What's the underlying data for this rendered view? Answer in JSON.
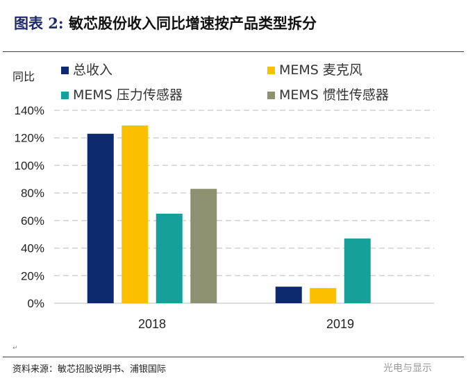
{
  "header": {
    "label": "图表 2:",
    "title": "敏芯股份收入同比增速按产品类型拆分"
  },
  "footer": {
    "source": "资料来源：敏芯招股说明书、浦银国际",
    "watermark": "光电与显示",
    "para_mark": "↵"
  },
  "chart_data": {
    "type": "bar",
    "ylabel": "同比",
    "categories": [
      "2018",
      "2019"
    ],
    "series": [
      {
        "name": "总收入",
        "color": "#0d2a6e",
        "values": [
          123,
          12
        ]
      },
      {
        "name": "MEMS 麦克风",
        "color": "#fcbf00",
        "values": [
          129,
          11
        ]
      },
      {
        "name": "MEMS 压力传感器",
        "color": "#16a09a",
        "values": [
          65,
          47
        ]
      },
      {
        "name": "MEMS 惯性传感器",
        "color": "#8e9170",
        "values": [
          83,
          null
        ]
      }
    ],
    "ylim": [
      0,
      140
    ],
    "yticks": [
      "0%",
      "20%",
      "40%",
      "60%",
      "80%",
      "100%",
      "120%",
      "140%"
    ],
    "grid": true,
    "legend": "top"
  }
}
